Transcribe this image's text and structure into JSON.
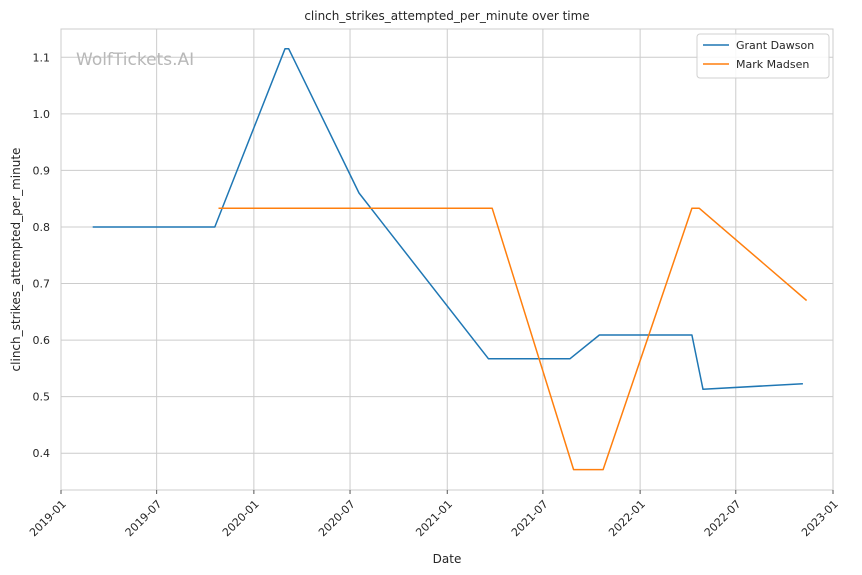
{
  "chart_data": {
    "type": "line",
    "title": "clinch_strikes_attempted_per_minute over time",
    "xlabel": "Date",
    "ylabel": "clinch_strikes_attempted_per_minute",
    "watermark": "WolfTickets.AI",
    "xlim": [
      "2019-01-01",
      "2023-01-01"
    ],
    "ylim": [
      0.335,
      1.15
    ],
    "x_ticks": [
      "2019-01",
      "2019-07",
      "2020-01",
      "2020-07",
      "2021-01",
      "2021-07",
      "2022-01",
      "2022-07",
      "2023-01"
    ],
    "y_ticks": [
      0.4,
      0.5,
      0.6,
      0.7,
      0.8,
      0.9,
      1.0,
      1.1
    ],
    "y_tick_labels": [
      "0.4",
      "0.5",
      "0.6",
      "0.7",
      "0.8",
      "0.9",
      "1.0",
      "1.1"
    ],
    "grid": true,
    "legend_position": "top-right",
    "series": [
      {
        "name": "Grant Dawson",
        "color": "#1f77b4",
        "points": [
          {
            "x": "2019-03-02",
            "y": 0.8
          },
          {
            "x": "2019-10-19",
            "y": 0.8
          },
          {
            "x": "2020-02-29",
            "y": 1.115
          },
          {
            "x": "2020-03-07",
            "y": 1.115
          },
          {
            "x": "2020-07-18",
            "y": 0.86
          },
          {
            "x": "2021-03-20",
            "y": 0.567
          },
          {
            "x": "2021-08-21",
            "y": 0.567
          },
          {
            "x": "2021-10-16",
            "y": 0.609
          },
          {
            "x": "2022-04-09",
            "y": 0.609
          },
          {
            "x": "2022-04-30",
            "y": 0.513
          },
          {
            "x": "2022-11-05",
            "y": 0.523
          }
        ]
      },
      {
        "name": "Mark Madsen",
        "color": "#ff7f0e",
        "points": [
          {
            "x": "2019-10-26",
            "y": 0.833
          },
          {
            "x": "2021-03-27",
            "y": 0.833
          },
          {
            "x": "2021-08-28",
            "y": 0.371
          },
          {
            "x": "2021-10-23",
            "y": 0.371
          },
          {
            "x": "2022-04-09",
            "y": 0.833
          },
          {
            "x": "2022-04-23",
            "y": 0.833
          },
          {
            "x": "2022-11-12",
            "y": 0.67
          }
        ]
      }
    ]
  }
}
